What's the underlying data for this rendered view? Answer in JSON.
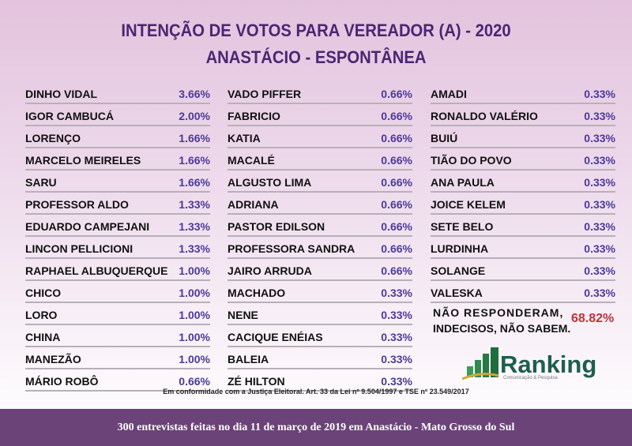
{
  "title": "INTENÇÃO DE VOTOS PARA VEREADOR (A) - 2020",
  "subtitle": "ANASTÁCIO - ESPONTÂNEA",
  "columns": [
    [
      {
        "name": "DINHO VIDAL",
        "pct": "3.66%"
      },
      {
        "name": "IGOR CAMBUCÁ",
        "pct": "2.00%"
      },
      {
        "name": "LORENÇO",
        "pct": "1.66%"
      },
      {
        "name": "MARCELO MEIRELES",
        "pct": "1.66%"
      },
      {
        "name": "SARU",
        "pct": "1.66%"
      },
      {
        "name": "PROFESSOR ALDO",
        "pct": "1.33%"
      },
      {
        "name": "EDUARDO CAMPEJANI",
        "pct": "1.33%"
      },
      {
        "name": "LINCON PELLICIONI",
        "pct": "1.33%"
      },
      {
        "name": "RAPHAEL ALBUQUERQUE",
        "pct": "1.00%"
      },
      {
        "name": "CHICO",
        "pct": "1.00%"
      },
      {
        "name": "LORO",
        "pct": "1.00%"
      },
      {
        "name": "CHINA",
        "pct": "1.00%"
      },
      {
        "name": "MANEZÃO",
        "pct": "1.00%"
      },
      {
        "name": "MÁRIO ROBÔ",
        "pct": "0.66%"
      }
    ],
    [
      {
        "name": "VADO PIFFER",
        "pct": "0.66%"
      },
      {
        "name": "FABRICIO",
        "pct": "0.66%"
      },
      {
        "name": "KATIA",
        "pct": "0.66%"
      },
      {
        "name": "MACALÉ",
        "pct": "0.66%"
      },
      {
        "name": "ALGUSTO LIMA",
        "pct": "0.66%"
      },
      {
        "name": "ADRIANA",
        "pct": "0.66%"
      },
      {
        "name": "PASTOR EDILSON",
        "pct": "0.66%"
      },
      {
        "name": "PROFESSORA SANDRA",
        "pct": "0.66%"
      },
      {
        "name": "JAIRO ARRUDA",
        "pct": "0.66%"
      },
      {
        "name": "MACHADO",
        "pct": "0.33%"
      },
      {
        "name": "NENE",
        "pct": "0.33%"
      },
      {
        "name": "CACIQUE ENÉIAS",
        "pct": "0.33%"
      },
      {
        "name": "BALEIA",
        "pct": "0.33%"
      },
      {
        "name": "ZÉ HILTON",
        "pct": "0.33%"
      }
    ],
    [
      {
        "name": "AMADI",
        "pct": "0.33%"
      },
      {
        "name": "RONALDO VALÉRIO",
        "pct": "0.33%"
      },
      {
        "name": "BUIÚ",
        "pct": "0.33%"
      },
      {
        "name": "TIÃO DO POVO",
        "pct": "0.33%"
      },
      {
        "name": "ANA PAULA",
        "pct": "0.33%"
      },
      {
        "name": "JOICE KELEM",
        "pct": "0.33%"
      },
      {
        "name": "SETE BELO",
        "pct": "0.33%"
      },
      {
        "name": "LURDINHA",
        "pct": "0.33%"
      },
      {
        "name": "SOLANGE",
        "pct": "0.33%"
      },
      {
        "name": "VALESKA",
        "pct": "0.33%"
      }
    ]
  ],
  "no_answer": {
    "line1": "NÃO RESPONDERAM,",
    "line2": "INDECISOS, NÃO SABEM.",
    "pct": "68.82%"
  },
  "logo": {
    "name": "Ranking",
    "tagline": "Comunicação & Pesquisa"
  },
  "legal": "Em conformidade com a Justiça Eleitoral. Art. 33 da Lei nº 9.504/1997 e TSE nº 23.549/2017",
  "footer": "300 entrevistas feitas no dia 11 de março de 2019 em Anastácio - Mato Grosso do Sul",
  "colors": {
    "title": "#4a2673",
    "percent": "#4b3a9a",
    "highlight": "#c0323a",
    "footer_bg": "#6b4378",
    "logo": "#1e5e4e"
  }
}
